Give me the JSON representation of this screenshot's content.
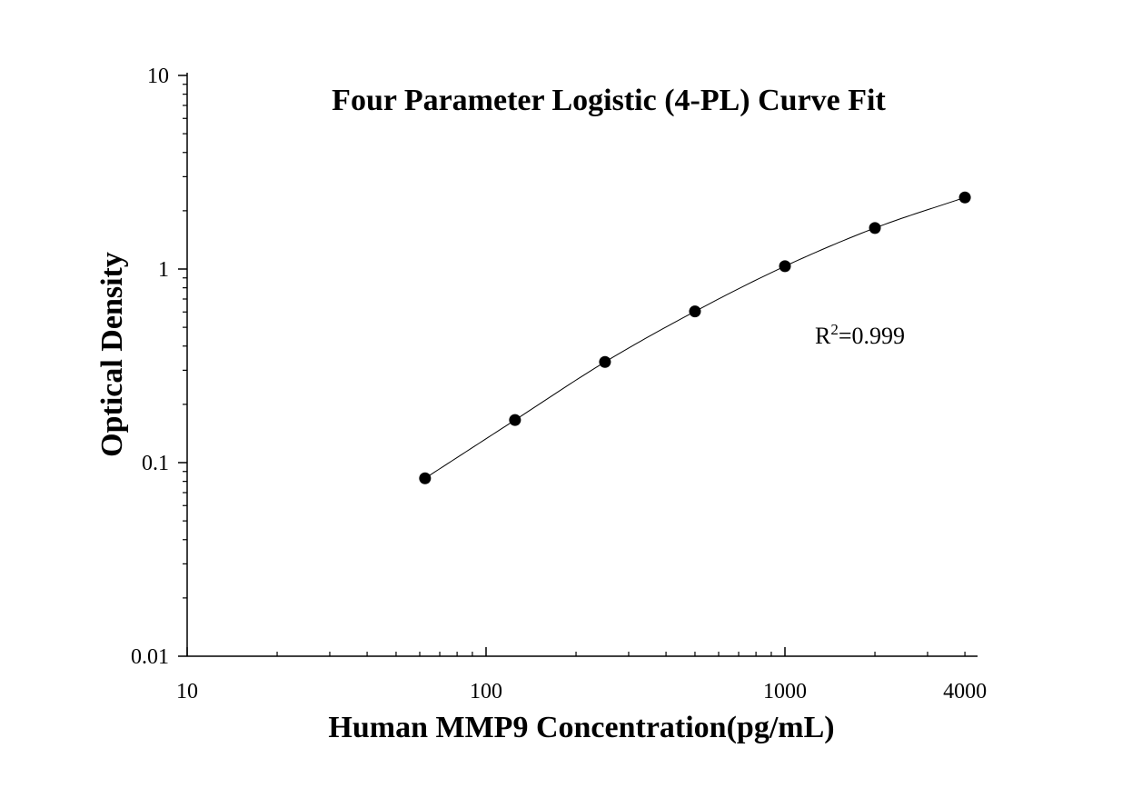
{
  "chart_data": {
    "type": "scatter",
    "title": "Four Parameter Logistic (4-PL) Curve Fit",
    "xlabel": "Human MMP9 Concentration(pg/mL)",
    "ylabel": "Optical Density",
    "x_scale": "log",
    "y_scale": "log",
    "xlim": [
      10,
      4600
    ],
    "ylim": [
      0.01,
      10
    ],
    "x_ticks": [
      {
        "value": 10,
        "label": "10"
      },
      {
        "value": 100,
        "label": "100"
      },
      {
        "value": 1000,
        "label": "1000"
      },
      {
        "value": 4000,
        "label": "4000"
      }
    ],
    "y_ticks": [
      {
        "value": 0.01,
        "label": "0.01"
      },
      {
        "value": 0.1,
        "label": "0.1"
      },
      {
        "value": 1,
        "label": "1"
      },
      {
        "value": 10,
        "label": "10"
      }
    ],
    "grid": false,
    "legend": "none",
    "points": [
      {
        "x": 62.5,
        "y": 0.083
      },
      {
        "x": 125,
        "y": 0.166
      },
      {
        "x": 250,
        "y": 0.331
      },
      {
        "x": 500,
        "y": 0.604
      },
      {
        "x": 1000,
        "y": 1.034
      },
      {
        "x": 2000,
        "y": 1.629
      },
      {
        "x": 4000,
        "y": 2.343
      }
    ],
    "fit_curve": {
      "model": "4-PL",
      "x_range": [
        62.5,
        4000
      ]
    },
    "annotation": {
      "prefix": "R",
      "superscript": "2",
      "suffix": "=0.999"
    },
    "colors": {
      "points": "#000000",
      "curve": "#000000",
      "axis": "#000000"
    }
  }
}
